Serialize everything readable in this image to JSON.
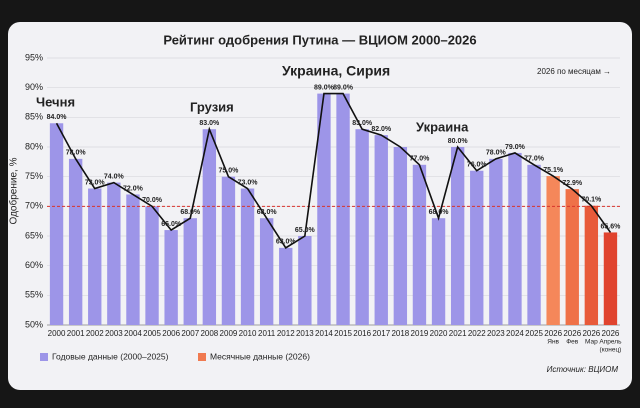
{
  "chart_data": {
    "type": "bar",
    "title": "Рейтинг одобрения Путина — ВЦИОМ 2000–2026",
    "y_label": "Одобрение, %",
    "source": "Источник: ВЦИОМ",
    "annotations": [
      {
        "text": "Чечня",
        "category": 0
      },
      {
        "text": "Грузия",
        "category": 8
      },
      {
        "text": "Украина, Сирия",
        "category": 14
      },
      {
        "text": "Украина",
        "category": 22
      },
      {
        "text": "2026 по месяцам →",
        "category": 27
      }
    ],
    "categories": [
      "2000",
      "2001",
      "2002",
      "2003",
      "2004",
      "2005",
      "2006",
      "2007",
      "2008",
      "2009",
      "2010",
      "2011",
      "2012",
      "2013",
      "2014",
      "2015",
      "2016",
      "2017",
      "2018",
      "2019",
      "2020",
      "2021",
      "2022",
      "2023",
      "2024",
      "2025",
      [
        "2026",
        "Янв"
      ],
      [
        "2026",
        "Фев"
      ],
      [
        "2026",
        "Мар"
      ],
      [
        "2026",
        "Апрель",
        "(конец)"
      ]
    ],
    "series": [
      {
        "name": "Годовые данные (2000–2025)",
        "color": "#9d95e8",
        "values": [
          84,
          78,
          73,
          74,
          72,
          70,
          66,
          68,
          83,
          75,
          73,
          68,
          63,
          65,
          89,
          89,
          83,
          82,
          80,
          77,
          68,
          80,
          76,
          78,
          79,
          77,
          null,
          null,
          null,
          null
        ],
        "value_labels": [
          "84.0%",
          "78.0%",
          "73.0%",
          "74.0%",
          "72.0%",
          "70.0%",
          "66.0%",
          "68.0%",
          "83.0%",
          "75.0%",
          "73.0%",
          "68.0%",
          "63.0%",
          "65.0%",
          "89.0%",
          "89.0%",
          "83.0%",
          "82.0%",
          null,
          "77.0%",
          "68.0%",
          "80.0%",
          "76.0%",
          "78.0%",
          "79.0%",
          "77.0%",
          null,
          null,
          null,
          null
        ]
      },
      {
        "name": "Месячные данные (2026)",
        "color": "#f07a50",
        "colors": [
          null,
          null,
          null,
          null,
          null,
          null,
          null,
          null,
          null,
          null,
          null,
          null,
          null,
          null,
          null,
          null,
          null,
          null,
          null,
          null,
          null,
          null,
          null,
          null,
          null,
          null,
          "#f5875a",
          "#ef7148",
          "#e85a3a",
          "#e0432e"
        ],
        "values": [
          null,
          null,
          null,
          null,
          null,
          null,
          null,
          null,
          null,
          null,
          null,
          null,
          null,
          null,
          null,
          null,
          null,
          null,
          null,
          null,
          null,
          null,
          null,
          null,
          null,
          null,
          75.1,
          72.9,
          70.1,
          65.6
        ],
        "value_labels": [
          null,
          null,
          null,
          null,
          null,
          null,
          null,
          null,
          null,
          null,
          null,
          null,
          null,
          null,
          null,
          null,
          null,
          null,
          null,
          null,
          null,
          null,
          null,
          null,
          null,
          null,
          "75.1%",
          "72.9%",
          "70.1%",
          "65.6%"
        ]
      }
    ],
    "ylim": [
      50,
      95
    ],
    "yticks": [
      {
        "value": 50,
        "label": "50%"
      },
      {
        "value": 55,
        "label": "55%"
      },
      {
        "value": 60,
        "label": "60%"
      },
      {
        "value": 65,
        "label": "65%"
      },
      {
        "value": 70,
        "label": "70%"
      },
      {
        "value": 75,
        "label": "75%"
      },
      {
        "value": 80,
        "label": "80%"
      },
      {
        "value": 85,
        "label": "85%"
      },
      {
        "value": 90,
        "label": "90%"
      },
      {
        "value": 95,
        "label": "95%"
      }
    ],
    "grid": true,
    "reference_line": {
      "value": 70,
      "color": "#d9342b"
    },
    "trend_line_color": "#111111"
  }
}
